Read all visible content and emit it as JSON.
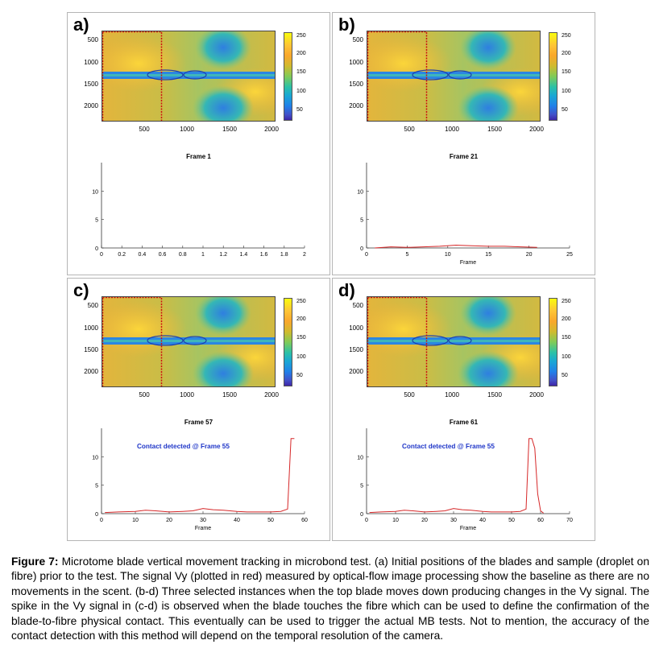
{
  "panels": [
    {
      "label": "a)",
      "frame_title": "Frame 1",
      "annotation": "",
      "xlabel": "",
      "x_ticks": [
        "0",
        "0.2",
        "0.4",
        "0.6",
        "0.8",
        "1",
        "1.2",
        "1.4",
        "1.6",
        "1.8",
        "2"
      ],
      "xmax": 2,
      "y_ticks": [
        "0",
        "5",
        "10"
      ],
      "signal": []
    },
    {
      "label": "b)",
      "frame_title": "Frame 21",
      "annotation": "",
      "xlabel": "Frame",
      "x_ticks": [
        "0",
        "5",
        "10",
        "15",
        "20",
        "25"
      ],
      "xmax": 25,
      "y_ticks": [
        "0",
        "5",
        "10"
      ],
      "signal": [
        [
          1,
          0
        ],
        [
          3,
          0.2
        ],
        [
          5,
          0.1
        ],
        [
          7,
          0.2
        ],
        [
          9,
          0.3
        ],
        [
          11,
          0.5
        ],
        [
          13,
          0.4
        ],
        [
          15,
          0.3
        ],
        [
          17,
          0.3
        ],
        [
          19,
          0.2
        ],
        [
          21,
          0.1
        ]
      ]
    },
    {
      "label": "c)",
      "frame_title": "Frame 57",
      "annotation": "Contact detected @ Frame 55",
      "xlabel": "Frame",
      "x_ticks": [
        "0",
        "10",
        "20",
        "30",
        "40",
        "50",
        "60"
      ],
      "xmax": 60,
      "y_ticks": [
        "0",
        "5",
        "10"
      ],
      "signal": [
        [
          1,
          0.2
        ],
        [
          5,
          0.3
        ],
        [
          10,
          0.4
        ],
        [
          13,
          0.6
        ],
        [
          16,
          0.5
        ],
        [
          20,
          0.3
        ],
        [
          24,
          0.4
        ],
        [
          27,
          0.5
        ],
        [
          30,
          0.9
        ],
        [
          33,
          0.7
        ],
        [
          36,
          0.6
        ],
        [
          40,
          0.4
        ],
        [
          43,
          0.3
        ],
        [
          46,
          0.3
        ],
        [
          50,
          0.3
        ],
        [
          53,
          0.4
        ],
        [
          55,
          0.8
        ],
        [
          56,
          13.2
        ],
        [
          57,
          13.2
        ]
      ]
    },
    {
      "label": "d)",
      "frame_title": "Frame 61",
      "annotation": "Contact detected @ Frame 55",
      "xlabel": "Frame",
      "x_ticks": [
        "0",
        "10",
        "20",
        "30",
        "40",
        "50",
        "60",
        "70"
      ],
      "xmax": 70,
      "y_ticks": [
        "0",
        "5",
        "10"
      ],
      "signal": [
        [
          1,
          0.2
        ],
        [
          5,
          0.3
        ],
        [
          10,
          0.4
        ],
        [
          13,
          0.6
        ],
        [
          16,
          0.5
        ],
        [
          20,
          0.3
        ],
        [
          24,
          0.4
        ],
        [
          27,
          0.5
        ],
        [
          30,
          0.9
        ],
        [
          33,
          0.7
        ],
        [
          36,
          0.6
        ],
        [
          40,
          0.4
        ],
        [
          43,
          0.3
        ],
        [
          46,
          0.3
        ],
        [
          50,
          0.3
        ],
        [
          53,
          0.4
        ],
        [
          55,
          0.8
        ],
        [
          56,
          13.2
        ],
        [
          57,
          13.2
        ],
        [
          58,
          11.5
        ],
        [
          59,
          3.5
        ],
        [
          60,
          0.5
        ],
        [
          61,
          0.1
        ]
      ]
    }
  ],
  "heatmap": {
    "y_ticks": [
      "500",
      "1000",
      "1500",
      "2000"
    ],
    "x_ticks": [
      "500",
      "1000",
      "1500",
      "2000"
    ],
    "colorbar_ticks": [
      "250",
      "200",
      "150",
      "100",
      "50"
    ]
  },
  "signal_ymax": 15,
  "colors": {
    "signal": "#d62728",
    "roi": "#cc1111"
  },
  "caption": {
    "label": "Figure 7:",
    "text": " Microtome blade vertical movement tracking in microbond test. (a) Initial positions of the blades and sample (droplet on fibre) prior to the test. The signal Vy (plotted in red) measured by optical-flow image processing show the baseline as there are no movements in the scent. (b-d) Three selected instances when the top blade moves down producing changes in the Vy signal. The spike in the Vy signal in (c-d) is observed when the blade touches the fibre which can be used to define the confirmation of the blade-to-fibre physical contact. This eventually can be used to trigger the actual MB tests. Not to mention, the accuracy of the contact detection with this method will depend on the temporal resolution of the camera."
  }
}
